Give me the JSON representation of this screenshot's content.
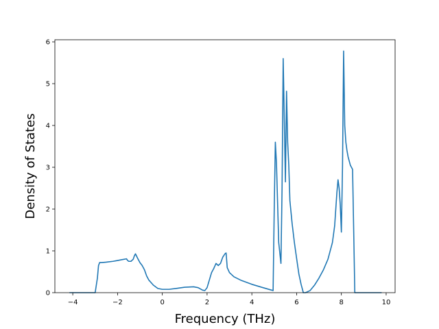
{
  "chart_data": {
    "type": "line",
    "title": "",
    "xlabel": "Frequency (THz)",
    "ylabel": "Density of States",
    "xlim": [
      -4.8,
      10.4
    ],
    "ylim": [
      0,
      6.05
    ],
    "xticks": [
      -4,
      -2,
      0,
      2,
      4,
      6,
      8,
      10
    ],
    "yticks": [
      0,
      1,
      2,
      3,
      4,
      5,
      6
    ],
    "xtick_labels": [
      "−4",
      "−2",
      "0",
      "2",
      "4",
      "6",
      "8",
      "10"
    ],
    "ytick_labels": [
      "0",
      "1",
      "2",
      "3",
      "4",
      "5",
      "6"
    ],
    "grid": false,
    "legend": "none",
    "series": [
      {
        "color": "#1f77b4",
        "x": [
          -4.15,
          -3.0,
          -2.9,
          -2.85,
          -2.8,
          -2.7,
          -2.5,
          -2.2,
          -2.0,
          -1.8,
          -1.6,
          -1.55,
          -1.5,
          -1.4,
          -1.3,
          -1.25,
          -1.2,
          -1.1,
          -1.0,
          -0.9,
          -0.8,
          -0.7,
          -0.6,
          -0.4,
          -0.2,
          0.0,
          0.3,
          0.6,
          1.0,
          1.4,
          1.6,
          1.8,
          1.9,
          2.0,
          2.1,
          2.2,
          2.3,
          2.4,
          2.5,
          2.6,
          2.7,
          2.8,
          2.85,
          2.9,
          3.0,
          3.2,
          3.5,
          4.0,
          4.5,
          4.95,
          5.0,
          5.05,
          5.1,
          5.2,
          5.3,
          5.35,
          5.4,
          5.5,
          5.55,
          5.6,
          5.65,
          5.7,
          5.8,
          5.9,
          6.0,
          6.1,
          6.2,
          6.3,
          6.4,
          6.6,
          6.8,
          7.0,
          7.2,
          7.4,
          7.6,
          7.7,
          7.8,
          7.85,
          7.9,
          7.95,
          8.0,
          8.05,
          8.1,
          8.15,
          8.2,
          8.25,
          8.3,
          8.35,
          8.4,
          8.5,
          8.6,
          8.65,
          8.7,
          9.0,
          9.5,
          9.8
        ],
        "y": [
          0.0,
          0.0,
          0.35,
          0.65,
          0.72,
          0.72,
          0.73,
          0.75,
          0.77,
          0.79,
          0.81,
          0.77,
          0.75,
          0.75,
          0.8,
          0.88,
          0.93,
          0.82,
          0.72,
          0.65,
          0.55,
          0.4,
          0.3,
          0.18,
          0.1,
          0.08,
          0.08,
          0.1,
          0.13,
          0.14,
          0.12,
          0.06,
          0.05,
          0.12,
          0.3,
          0.48,
          0.58,
          0.7,
          0.65,
          0.7,
          0.85,
          0.93,
          0.95,
          0.6,
          0.48,
          0.38,
          0.3,
          0.2,
          0.12,
          0.05,
          2.0,
          3.6,
          3.1,
          1.2,
          0.7,
          2.5,
          5.6,
          2.65,
          4.82,
          3.6,
          3.05,
          2.2,
          1.65,
          1.2,
          0.82,
          0.45,
          0.2,
          0.0,
          0.0,
          0.05,
          0.18,
          0.35,
          0.55,
          0.8,
          1.2,
          1.6,
          2.4,
          2.7,
          2.5,
          2.1,
          1.45,
          3.0,
          5.78,
          4.0,
          3.6,
          3.4,
          3.25,
          3.15,
          3.05,
          2.95,
          0.0,
          0.0,
          0.0,
          0.0,
          0.0,
          0.0
        ]
      }
    ]
  }
}
